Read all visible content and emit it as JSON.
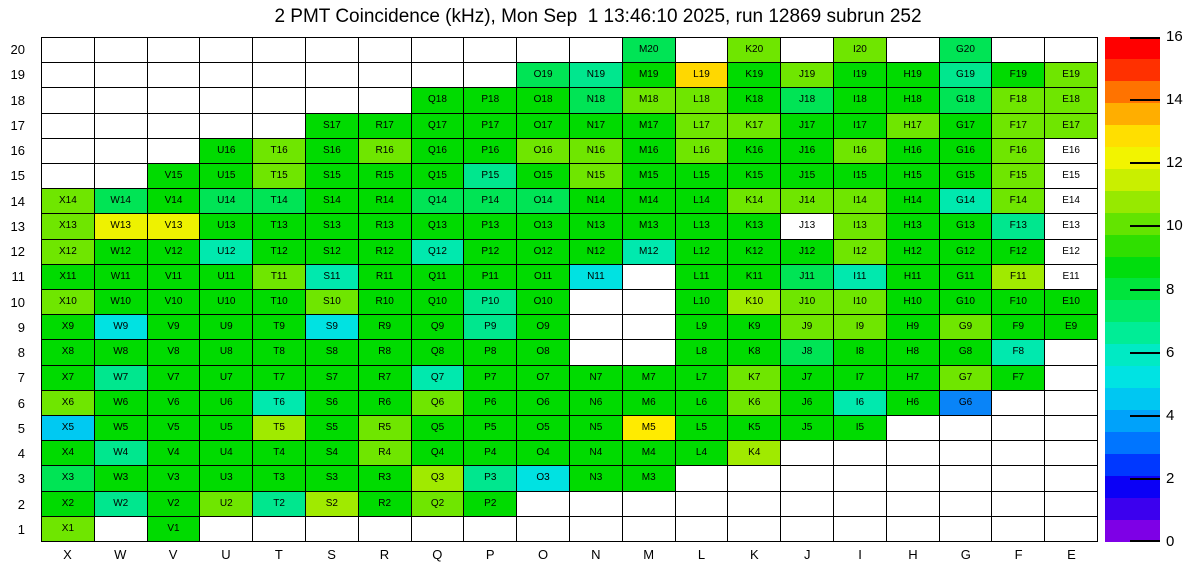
{
  "title": "2 PMT Coincidence (kHz), Mon Sep  1 13:46:10 2025, run 12869 subrun 252",
  "chart_data": {
    "type": "heatmap",
    "title": "2 PMT Coincidence (kHz), Mon Sep  1 13:46:10 2025, run 12869 subrun 252",
    "xlabel": "",
    "ylabel": "",
    "columns": [
      "X",
      "W",
      "V",
      "U",
      "T",
      "S",
      "R",
      "Q",
      "P",
      "O",
      "N",
      "M",
      "L",
      "K",
      "J",
      "I",
      "H",
      "G",
      "F",
      "E"
    ],
    "rows": [
      20,
      19,
      18,
      17,
      16,
      15,
      14,
      13,
      12,
      11,
      10,
      9,
      8,
      7,
      6,
      5,
      4,
      3,
      2,
      1
    ],
    "units": "kHz",
    "palette": {
      "g": {
        "hex": "#00DB00",
        "value": 9.0
      },
      "lg": {
        "hex": "#6FE600",
        "value": 10.3
      },
      "yg": {
        "hex": "#A0EA00",
        "value": 11.0
      },
      "y": {
        "hex": "#EEF200",
        "value": 11.8
      },
      "ly": {
        "hex": "#FFEB00",
        "value": 12.1
      },
      "gold": {
        "hex": "#FFD800",
        "value": 12.4
      },
      "sg": {
        "hex": "#00E455",
        "value": 8.0
      },
      "tg": {
        "hex": "#00E78E",
        "value": 7.0
      },
      "cg": {
        "hex": "#00E9AE",
        "value": 6.5
      },
      "cy": {
        "hex": "#00E2E2",
        "value": 5.5
      },
      "cb": {
        "hex": "#00C9F2",
        "value": 4.7
      },
      "bl": {
        "hex": "#0984F8",
        "value": 3.5
      },
      "w": {
        "hex": "#FFFFFF",
        "value": 0
      }
    },
    "cells": [
      [
        null,
        null,
        null,
        null,
        null,
        null,
        null,
        null,
        null,
        null,
        null,
        [
          "M20",
          "sg"
        ],
        null,
        [
          "K20",
          "lg"
        ],
        null,
        [
          "I20",
          "lg"
        ],
        null,
        [
          "G20",
          "sg"
        ],
        null,
        null
      ],
      [
        null,
        null,
        null,
        null,
        null,
        null,
        null,
        null,
        null,
        [
          "O19",
          "sg"
        ],
        [
          "N19",
          "tg"
        ],
        [
          "M19",
          "g"
        ],
        [
          "L19",
          "gold"
        ],
        [
          "K19",
          "g"
        ],
        [
          "J19",
          "lg"
        ],
        [
          "I19",
          "g"
        ],
        [
          "H19",
          "g"
        ],
        [
          "G19",
          "tg"
        ],
        [
          "F19",
          "g"
        ],
        [
          "E19",
          "lg"
        ]
      ],
      [
        null,
        null,
        null,
        null,
        null,
        null,
        null,
        [
          "Q18",
          "g"
        ],
        [
          "P18",
          "g"
        ],
        [
          "O18",
          "g"
        ],
        [
          "N18",
          "sg"
        ],
        [
          "M18",
          "lg"
        ],
        [
          "L18",
          "lg"
        ],
        [
          "K18",
          "g"
        ],
        [
          "J18",
          "sg"
        ],
        [
          "I18",
          "g"
        ],
        [
          "H18",
          "g"
        ],
        [
          "G18",
          "sg"
        ],
        [
          "F18",
          "lg"
        ],
        [
          "E18",
          "lg"
        ]
      ],
      [
        null,
        null,
        null,
        null,
        null,
        [
          "S17",
          "g"
        ],
        [
          "R17",
          "g"
        ],
        [
          "Q17",
          "g"
        ],
        [
          "P17",
          "g"
        ],
        [
          "O17",
          "g"
        ],
        [
          "N17",
          "g"
        ],
        [
          "M17",
          "g"
        ],
        [
          "L17",
          "lg"
        ],
        [
          "K17",
          "lg"
        ],
        [
          "J17",
          "g"
        ],
        [
          "I17",
          "g"
        ],
        [
          "H17",
          "lg"
        ],
        [
          "G17",
          "g"
        ],
        [
          "F17",
          "lg"
        ],
        [
          "E17",
          "lg"
        ]
      ],
      [
        null,
        null,
        null,
        [
          "U16",
          "g"
        ],
        [
          "T16",
          "lg"
        ],
        [
          "S16",
          "g"
        ],
        [
          "R16",
          "lg"
        ],
        [
          "Q16",
          "g"
        ],
        [
          "P16",
          "g"
        ],
        [
          "O16",
          "lg"
        ],
        [
          "N16",
          "lg"
        ],
        [
          "M16",
          "g"
        ],
        [
          "L16",
          "lg"
        ],
        [
          "K16",
          "g"
        ],
        [
          "J16",
          "g"
        ],
        [
          "I16",
          "lg"
        ],
        [
          "H16",
          "g"
        ],
        [
          "G16",
          "g"
        ],
        [
          "F16",
          "lg"
        ],
        [
          "E16",
          "w"
        ]
      ],
      [
        null,
        null,
        [
          "V15",
          "g"
        ],
        [
          "U15",
          "g"
        ],
        [
          "T15",
          "lg"
        ],
        [
          "S15",
          "g"
        ],
        [
          "R15",
          "g"
        ],
        [
          "Q15",
          "g"
        ],
        [
          "P15",
          "tg"
        ],
        [
          "O15",
          "g"
        ],
        [
          "N15",
          "lg"
        ],
        [
          "M15",
          "g"
        ],
        [
          "L15",
          "g"
        ],
        [
          "K15",
          "g"
        ],
        [
          "J15",
          "g"
        ],
        [
          "I15",
          "g"
        ],
        [
          "H15",
          "g"
        ],
        [
          "G15",
          "g"
        ],
        [
          "F15",
          "lg"
        ],
        [
          "E15",
          "w"
        ]
      ],
      [
        [
          "X14",
          "lg"
        ],
        [
          "W14",
          "sg"
        ],
        [
          "V14",
          "g"
        ],
        [
          "U14",
          "sg"
        ],
        [
          "T14",
          "sg"
        ],
        [
          "S14",
          "g"
        ],
        [
          "R14",
          "g"
        ],
        [
          "Q14",
          "sg"
        ],
        [
          "P14",
          "sg"
        ],
        [
          "O14",
          "sg"
        ],
        [
          "N14",
          "g"
        ],
        [
          "M14",
          "g"
        ],
        [
          "L14",
          "g"
        ],
        [
          "K14",
          "lg"
        ],
        [
          "J14",
          "lg"
        ],
        [
          "I14",
          "lg"
        ],
        [
          "H14",
          "g"
        ],
        [
          "G14",
          "cg"
        ],
        [
          "F14",
          "lg"
        ],
        [
          "E14",
          "w"
        ]
      ],
      [
        [
          "X13",
          "lg"
        ],
        [
          "W13",
          "y"
        ],
        [
          "V13",
          "y"
        ],
        [
          "U13",
          "g"
        ],
        [
          "T13",
          "g"
        ],
        [
          "S13",
          "g"
        ],
        [
          "R13",
          "g"
        ],
        [
          "Q13",
          "g"
        ],
        [
          "P13",
          "g"
        ],
        [
          "O13",
          "g"
        ],
        [
          "N13",
          "g"
        ],
        [
          "M13",
          "g"
        ],
        [
          "L13",
          "g"
        ],
        [
          "K13",
          "g"
        ],
        [
          "J13",
          "w"
        ],
        [
          "I13",
          "lg"
        ],
        [
          "H13",
          "g"
        ],
        [
          "G13",
          "g"
        ],
        [
          "F13",
          "tg"
        ],
        [
          "E13",
          "w"
        ]
      ],
      [
        [
          "X12",
          "lg"
        ],
        [
          "W12",
          "g"
        ],
        [
          "V12",
          "g"
        ],
        [
          "U12",
          "cg"
        ],
        [
          "T12",
          "g"
        ],
        [
          "S12",
          "g"
        ],
        [
          "R12",
          "g"
        ],
        [
          "Q12",
          "cg"
        ],
        [
          "P12",
          "g"
        ],
        [
          "O12",
          "g"
        ],
        [
          "N12",
          "g"
        ],
        [
          "M12",
          "cg"
        ],
        [
          "L12",
          "g"
        ],
        [
          "K12",
          "g"
        ],
        [
          "J12",
          "g"
        ],
        [
          "I12",
          "lg"
        ],
        [
          "H12",
          "g"
        ],
        [
          "G12",
          "g"
        ],
        [
          "F12",
          "g"
        ],
        [
          "E12",
          "w"
        ]
      ],
      [
        [
          "X11",
          "g"
        ],
        [
          "W11",
          "g"
        ],
        [
          "V11",
          "g"
        ],
        [
          "U11",
          "g"
        ],
        [
          "T11",
          "lg"
        ],
        [
          "S11",
          "cg"
        ],
        [
          "R11",
          "g"
        ],
        [
          "Q11",
          "g"
        ],
        [
          "P11",
          "g"
        ],
        [
          "O11",
          "g"
        ],
        [
          "N11",
          "cy"
        ],
        null,
        [
          "L11",
          "g"
        ],
        [
          "K11",
          "g"
        ],
        [
          "J11",
          "sg"
        ],
        [
          "I11",
          "cg"
        ],
        [
          "H11",
          "g"
        ],
        [
          "G11",
          "g"
        ],
        [
          "F11",
          "yg"
        ],
        [
          "E11",
          "w"
        ]
      ],
      [
        [
          "X10",
          "lg"
        ],
        [
          "W10",
          "g"
        ],
        [
          "V10",
          "g"
        ],
        [
          "U10",
          "g"
        ],
        [
          "T10",
          "g"
        ],
        [
          "S10",
          "lg"
        ],
        [
          "R10",
          "g"
        ],
        [
          "Q10",
          "g"
        ],
        [
          "P10",
          "tg"
        ],
        [
          "O10",
          "g"
        ],
        null,
        null,
        [
          "L10",
          "g"
        ],
        [
          "K10",
          "yg"
        ],
        [
          "J10",
          "lg"
        ],
        [
          "I10",
          "lg"
        ],
        [
          "H10",
          "g"
        ],
        [
          "G10",
          "g"
        ],
        [
          "F10",
          "g"
        ],
        [
          "E10",
          "g"
        ]
      ],
      [
        [
          "X9",
          "g"
        ],
        [
          "W9",
          "cy"
        ],
        [
          "V9",
          "g"
        ],
        [
          "U9",
          "g"
        ],
        [
          "T9",
          "g"
        ],
        [
          "S9",
          "cy"
        ],
        [
          "R9",
          "g"
        ],
        [
          "Q9",
          "g"
        ],
        [
          "P9",
          "tg"
        ],
        [
          "O9",
          "g"
        ],
        null,
        null,
        [
          "L9",
          "g"
        ],
        [
          "K9",
          "g"
        ],
        [
          "J9",
          "lg"
        ],
        [
          "I9",
          "lg"
        ],
        [
          "H9",
          "g"
        ],
        [
          "G9",
          "lg"
        ],
        [
          "F9",
          "g"
        ],
        [
          "E9",
          "g"
        ]
      ],
      [
        [
          "X8",
          "g"
        ],
        [
          "W8",
          "g"
        ],
        [
          "V8",
          "g"
        ],
        [
          "U8",
          "g"
        ],
        [
          "T8",
          "g"
        ],
        [
          "S8",
          "g"
        ],
        [
          "R8",
          "g"
        ],
        [
          "Q8",
          "g"
        ],
        [
          "P8",
          "g"
        ],
        [
          "O8",
          "g"
        ],
        null,
        null,
        [
          "L8",
          "g"
        ],
        [
          "K8",
          "g"
        ],
        [
          "J8",
          "sg"
        ],
        [
          "I8",
          "g"
        ],
        [
          "H8",
          "g"
        ],
        [
          "G8",
          "g"
        ],
        [
          "F8",
          "cg"
        ],
        null
      ],
      [
        [
          "X7",
          "g"
        ],
        [
          "W7",
          "tg"
        ],
        [
          "V7",
          "g"
        ],
        [
          "U7",
          "g"
        ],
        [
          "T7",
          "g"
        ],
        [
          "S7",
          "g"
        ],
        [
          "R7",
          "g"
        ],
        [
          "Q7",
          "cg"
        ],
        [
          "P7",
          "g"
        ],
        [
          "O7",
          "g"
        ],
        [
          "N7",
          "g"
        ],
        [
          "M7",
          "g"
        ],
        [
          "L7",
          "g"
        ],
        [
          "K7",
          "lg"
        ],
        [
          "J7",
          "g"
        ],
        [
          "I7",
          "g"
        ],
        [
          "H7",
          "g"
        ],
        [
          "G7",
          "lg"
        ],
        [
          "F7",
          "g"
        ],
        null
      ],
      [
        [
          "X6",
          "lg"
        ],
        [
          "W6",
          "g"
        ],
        [
          "V6",
          "g"
        ],
        [
          "U6",
          "g"
        ],
        [
          "T6",
          "cg"
        ],
        [
          "S6",
          "g"
        ],
        [
          "R6",
          "g"
        ],
        [
          "Q6",
          "lg"
        ],
        [
          "P6",
          "g"
        ],
        [
          "O6",
          "g"
        ],
        [
          "N6",
          "g"
        ],
        [
          "M6",
          "g"
        ],
        [
          "L6",
          "g"
        ],
        [
          "K6",
          "lg"
        ],
        [
          "J6",
          "g"
        ],
        [
          "I6",
          "cg"
        ],
        [
          "H6",
          "g"
        ],
        [
          "G6",
          "bl"
        ],
        null,
        null
      ],
      [
        [
          "X5",
          "cb"
        ],
        [
          "W5",
          "g"
        ],
        [
          "V5",
          "g"
        ],
        [
          "U5",
          "g"
        ],
        [
          "T5",
          "yg"
        ],
        [
          "S5",
          "g"
        ],
        [
          "R5",
          "lg"
        ],
        [
          "Q5",
          "g"
        ],
        [
          "P5",
          "g"
        ],
        [
          "O5",
          "g"
        ],
        [
          "N5",
          "g"
        ],
        [
          "M5",
          "ly"
        ],
        [
          "L5",
          "g"
        ],
        [
          "K5",
          "g"
        ],
        [
          "J5",
          "g"
        ],
        [
          "I5",
          "g"
        ],
        null,
        null,
        null,
        null
      ],
      [
        [
          "X4",
          "g"
        ],
        [
          "W4",
          "tg"
        ],
        [
          "V4",
          "g"
        ],
        [
          "U4",
          "g"
        ],
        [
          "T4",
          "g"
        ],
        [
          "S4",
          "g"
        ],
        [
          "R4",
          "lg"
        ],
        [
          "Q4",
          "g"
        ],
        [
          "P4",
          "g"
        ],
        [
          "O4",
          "g"
        ],
        [
          "N4",
          "g"
        ],
        [
          "M4",
          "g"
        ],
        [
          "L4",
          "g"
        ],
        [
          "K4",
          "yg"
        ],
        null,
        null,
        null,
        null,
        null,
        null
      ],
      [
        [
          "X3",
          "sg"
        ],
        [
          "W3",
          "g"
        ],
        [
          "V3",
          "g"
        ],
        [
          "U3",
          "g"
        ],
        [
          "T3",
          "g"
        ],
        [
          "S3",
          "g"
        ],
        [
          "R3",
          "g"
        ],
        [
          "Q3",
          "yg"
        ],
        [
          "P3",
          "tg"
        ],
        [
          "O3",
          "cy"
        ],
        [
          "N3",
          "g"
        ],
        [
          "M3",
          "g"
        ],
        null,
        null,
        null,
        null,
        null,
        null,
        null,
        null
      ],
      [
        [
          "X2",
          "g"
        ],
        [
          "W2",
          "tg"
        ],
        [
          "V2",
          "g"
        ],
        [
          "U2",
          "lg"
        ],
        [
          "T2",
          "tg"
        ],
        [
          "S2",
          "yg"
        ],
        [
          "R2",
          "g"
        ],
        [
          "Q2",
          "lg"
        ],
        [
          "P2",
          "g"
        ],
        null,
        null,
        null,
        null,
        null,
        null,
        null,
        null,
        null,
        null,
        null
      ],
      [
        [
          "X1",
          "lg"
        ],
        null,
        [
          "V1",
          "g"
        ],
        null,
        null,
        null,
        null,
        null,
        null,
        null,
        null,
        null,
        null,
        null,
        null,
        null,
        null,
        null,
        null,
        null
      ]
    ],
    "colorbar": {
      "min": 0,
      "max": 16,
      "tick_labels": [
        0,
        2,
        4,
        6,
        8,
        10,
        12,
        14,
        16
      ],
      "stops_bottom_to_top": [
        "#7E00E6",
        "#3C00EE",
        "#0B00F6",
        "#0038FF",
        "#0075FF",
        "#00A2FA",
        "#00C7F2",
        "#00E3E3",
        "#00EAC4",
        "#00ED96",
        "#00EA68",
        "#00E43C",
        "#00DD0D",
        "#2FDF00",
        "#63E400",
        "#97E900",
        "#C9EF00",
        "#F2F400",
        "#FFDF00",
        "#FFAE00",
        "#FF7300",
        "#FF3000",
        "#FF0000"
      ]
    },
    "legend_position": "right",
    "grid": true
  }
}
